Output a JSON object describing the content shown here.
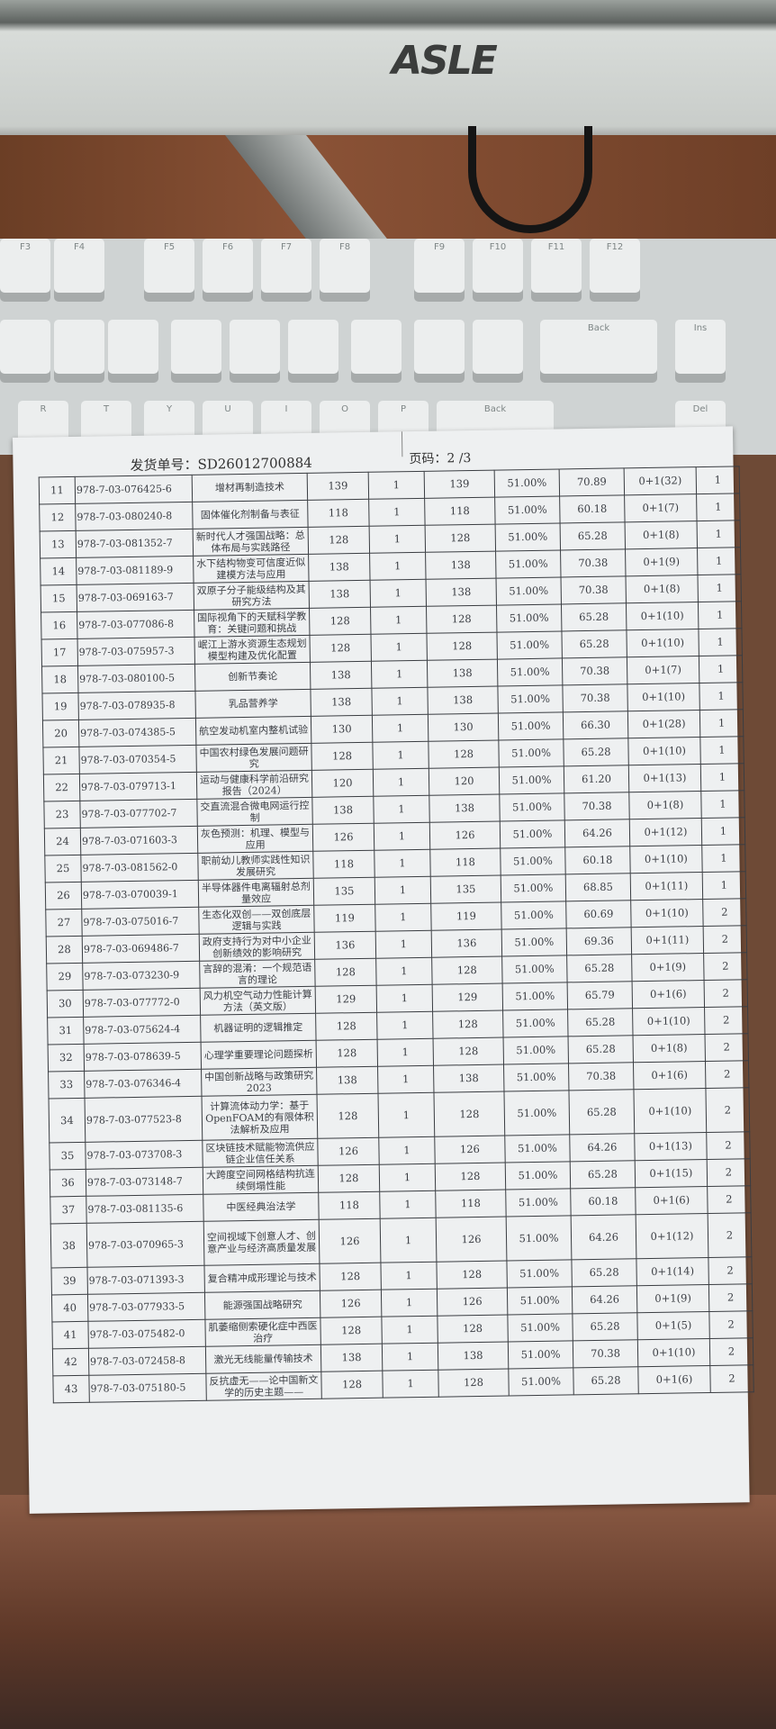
{
  "background": {
    "monitor_brand": "ASLE",
    "keyboard_keys": [
      "F3",
      "F4",
      "F5",
      "F6",
      "F7",
      "F8",
      "F9",
      "F10",
      "F11",
      "F12",
      "Ins",
      "Del",
      "R",
      "T",
      "Y",
      "U",
      "I",
      "O",
      "P",
      "Back"
    ]
  },
  "document": {
    "order_label": "发货单号：SD26012700884",
    "page_label": "页码：2 /3",
    "rows": [
      [
        "11",
        "978-7-03-076425-6",
        "增材再制造技术",
        "139",
        "1",
        "139",
        "51.00%",
        "70.89",
        "0+1(32)",
        "1"
      ],
      [
        "12",
        "978-7-03-080240-8",
        "固体催化剂制备与表征",
        "118",
        "1",
        "118",
        "51.00%",
        "60.18",
        "0+1(7)",
        "1"
      ],
      [
        "13",
        "978-7-03-081352-7",
        "新时代人才强国战略：总体布局与实践路径",
        "128",
        "1",
        "128",
        "51.00%",
        "65.28",
        "0+1(8)",
        "1"
      ],
      [
        "14",
        "978-7-03-081189-9",
        "水下结构物变可信度近似建模方法与应用",
        "138",
        "1",
        "138",
        "51.00%",
        "70.38",
        "0+1(9)",
        "1"
      ],
      [
        "15",
        "978-7-03-069163-7",
        "双原子分子能级结构及其研究方法",
        "138",
        "1",
        "138",
        "51.00%",
        "70.38",
        "0+1(8)",
        "1"
      ],
      [
        "16",
        "978-7-03-077086-8",
        "国际视角下的天赋科学教育：关键问题和挑战",
        "128",
        "1",
        "128",
        "51.00%",
        "65.28",
        "0+1(10)",
        "1"
      ],
      [
        "17",
        "978-7-03-075957-3",
        "岷江上游水资源生态规划模型构建及优化配置",
        "128",
        "1",
        "128",
        "51.00%",
        "65.28",
        "0+1(10)",
        "1"
      ],
      [
        "18",
        "978-7-03-080100-5",
        "创新节奏论",
        "138",
        "1",
        "138",
        "51.00%",
        "70.38",
        "0+1(7)",
        "1"
      ],
      [
        "19",
        "978-7-03-078935-8",
        "乳品营养学",
        "138",
        "1",
        "138",
        "51.00%",
        "70.38",
        "0+1(10)",
        "1"
      ],
      [
        "20",
        "978-7-03-074385-5",
        "航空发动机室内整机试验",
        "130",
        "1",
        "130",
        "51.00%",
        "66.30",
        "0+1(28)",
        "1"
      ],
      [
        "21",
        "978-7-03-070354-5",
        "中国农村绿色发展问题研究",
        "128",
        "1",
        "128",
        "51.00%",
        "65.28",
        "0+1(10)",
        "1"
      ],
      [
        "22",
        "978-7-03-079713-1",
        "运动与健康科学前沿研究报告（2024）",
        "120",
        "1",
        "120",
        "51.00%",
        "61.20",
        "0+1(13)",
        "1"
      ],
      [
        "23",
        "978-7-03-077702-7",
        "交直流混合微电网运行控制",
        "138",
        "1",
        "138",
        "51.00%",
        "70.38",
        "0+1(8)",
        "1"
      ],
      [
        "24",
        "978-7-03-071603-3",
        "灰色预测：机理、模型与应用",
        "126",
        "1",
        "126",
        "51.00%",
        "64.26",
        "0+1(12)",
        "1"
      ],
      [
        "25",
        "978-7-03-081562-0",
        "职前幼儿教师实践性知识发展研究",
        "118",
        "1",
        "118",
        "51.00%",
        "60.18",
        "0+1(10)",
        "1"
      ],
      [
        "26",
        "978-7-03-070039-1",
        "半导体器件电离辐射总剂量效应",
        "135",
        "1",
        "135",
        "51.00%",
        "68.85",
        "0+1(11)",
        "1"
      ],
      [
        "27",
        "978-7-03-075016-7",
        "生态化双创——双创底层逻辑与实践",
        "119",
        "1",
        "119",
        "51.00%",
        "60.69",
        "0+1(10)",
        "2"
      ],
      [
        "28",
        "978-7-03-069486-7",
        "政府支持行为对中小企业创新绩效的影响研究",
        "136",
        "1",
        "136",
        "51.00%",
        "69.36",
        "0+1(11)",
        "2"
      ],
      [
        "29",
        "978-7-03-073230-9",
        "言辞的混淆：一个规范语言的理论",
        "128",
        "1",
        "128",
        "51.00%",
        "65.28",
        "0+1(9)",
        "2"
      ],
      [
        "30",
        "978-7-03-077772-0",
        "风力机空气动力性能计算方法（英文版）",
        "129",
        "1",
        "129",
        "51.00%",
        "65.79",
        "0+1(6)",
        "2"
      ],
      [
        "31",
        "978-7-03-075624-4",
        "机器证明的逻辑推定",
        "128",
        "1",
        "128",
        "51.00%",
        "65.28",
        "0+1(10)",
        "2"
      ],
      [
        "32",
        "978-7-03-078639-5",
        "心理学重要理论问题探析",
        "128",
        "1",
        "128",
        "51.00%",
        "65.28",
        "0+1(8)",
        "2"
      ],
      [
        "33",
        "978-7-03-076346-4",
        "中国创新战略与政策研究2023",
        "138",
        "1",
        "138",
        "51.00%",
        "70.38",
        "0+1(6)",
        "2"
      ],
      [
        "34",
        "978-7-03-077523-8",
        "计算流体动力学：基于OpenFOAM的有限体积法解析及应用",
        "128",
        "1",
        "128",
        "51.00%",
        "65.28",
        "0+1(10)",
        "2"
      ],
      [
        "35",
        "978-7-03-073708-3",
        "区块链技术赋能物流供应链企业信任关系",
        "126",
        "1",
        "126",
        "51.00%",
        "64.26",
        "0+1(13)",
        "2"
      ],
      [
        "36",
        "978-7-03-073148-7",
        "大跨度空间网格结构抗连续倒塌性能",
        "128",
        "1",
        "128",
        "51.00%",
        "65.28",
        "0+1(15)",
        "2"
      ],
      [
        "37",
        "978-7-03-081135-6",
        "中医经典治法学",
        "118",
        "1",
        "118",
        "51.00%",
        "60.18",
        "0+1(6)",
        "2"
      ],
      [
        "38",
        "978-7-03-070965-3",
        "空间视域下创意人才、创意产业与经济高质量发展",
        "126",
        "1",
        "126",
        "51.00%",
        "64.26",
        "0+1(12)",
        "2"
      ],
      [
        "39",
        "978-7-03-071393-3",
        "复合精冲成形理论与技术",
        "128",
        "1",
        "128",
        "51.00%",
        "65.28",
        "0+1(14)",
        "2"
      ],
      [
        "40",
        "978-7-03-077933-5",
        "能源强国战略研究",
        "126",
        "1",
        "126",
        "51.00%",
        "64.26",
        "0+1(9)",
        "2"
      ],
      [
        "41",
        "978-7-03-075482-0",
        "肌萎缩侧索硬化症中西医治疗",
        "128",
        "1",
        "128",
        "51.00%",
        "65.28",
        "0+1(5)",
        "2"
      ],
      [
        "42",
        "978-7-03-072458-8",
        "激光无线能量传输技术",
        "138",
        "1",
        "138",
        "51.00%",
        "70.38",
        "0+1(10)",
        "2"
      ],
      [
        "43",
        "978-7-03-075180-5",
        "反抗虚无——论中国新文学的历史主题——",
        "128",
        "1",
        "128",
        "51.00%",
        "65.28",
        "0+1(6)",
        "2"
      ]
    ]
  }
}
